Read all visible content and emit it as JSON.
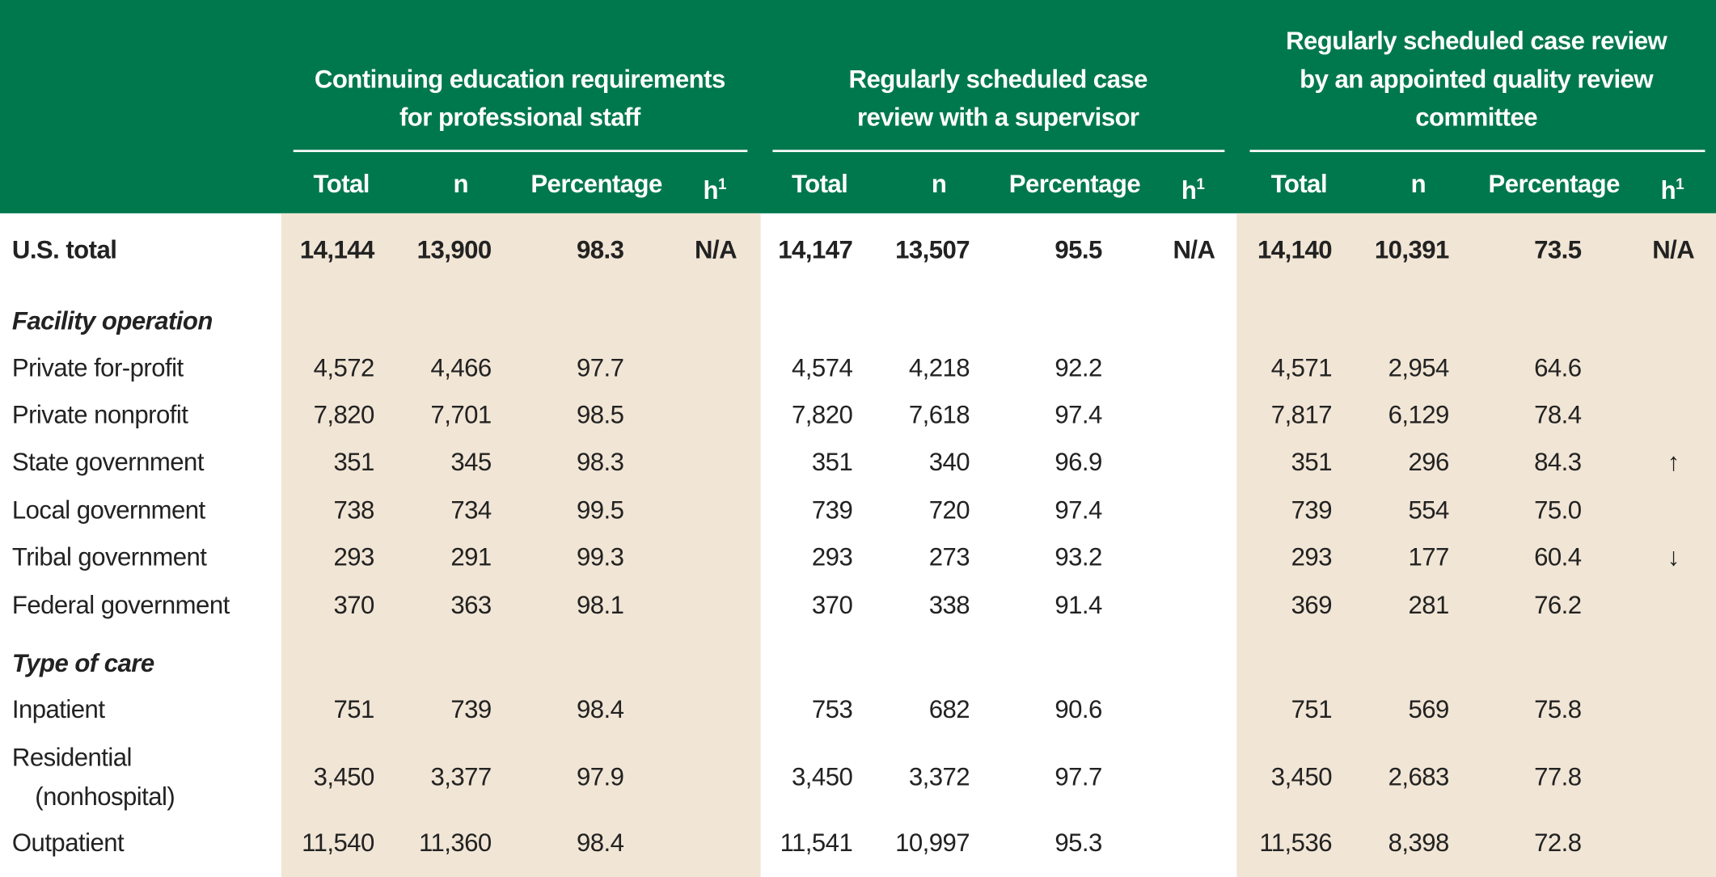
{
  "table": {
    "groups": [
      [
        "Continuing education requirements",
        "for professional staff"
      ],
      [
        "Regularly scheduled case",
        "review with a supervisor"
      ],
      [
        "Regularly scheduled case review",
        "by an appointed quality review",
        "committee"
      ]
    ],
    "columns": [
      "Total",
      "n",
      "Percentage",
      {
        "text": "h",
        "sup": "1"
      }
    ],
    "rows": [
      {
        "label": "U.S. total",
        "bold": true,
        "cells": [
          "14,144",
          "13,900",
          "98.3",
          "N/A",
          "14,147",
          "13,507",
          "95.5",
          "N/A",
          "14,140",
          "10,391",
          "73.5",
          "N/A"
        ]
      },
      {
        "section": "Facility operation"
      },
      {
        "label": "Private for-profit",
        "cells": [
          "4,572",
          "4,466",
          "97.7",
          null,
          "4,574",
          "4,218",
          "92.2",
          null,
          "4,571",
          "2,954",
          "64.6",
          null
        ]
      },
      {
        "label": "Private nonprofit",
        "cells": [
          "7,820",
          "7,701",
          "98.5",
          null,
          "7,820",
          "7,618",
          "97.4",
          null,
          "7,817",
          "6,129",
          "78.4",
          null
        ]
      },
      {
        "label": "State government",
        "cells": [
          "351",
          "345",
          "98.3",
          null,
          "351",
          "340",
          "96.9",
          null,
          "351",
          "296",
          "84.3",
          "↑"
        ]
      },
      {
        "label": "Local government",
        "cells": [
          "738",
          "734",
          "99.5",
          null,
          "739",
          "720",
          "97.4",
          null,
          "739",
          "554",
          "75.0",
          null
        ]
      },
      {
        "label": "Tribal government",
        "cells": [
          "293",
          "291",
          "99.3",
          null,
          "293",
          "273",
          "93.2",
          null,
          "293",
          "177",
          "60.4",
          "↓"
        ]
      },
      {
        "label": "Federal government",
        "cells": [
          "370",
          "363",
          "98.1",
          null,
          "370",
          "338",
          "91.4",
          null,
          "369",
          "281",
          "76.2",
          null
        ]
      },
      {
        "section": "Type of care"
      },
      {
        "label": "Inpatient",
        "cells": [
          "751",
          "739",
          "98.4",
          null,
          "753",
          "682",
          "90.6",
          null,
          "751",
          "569",
          "75.8",
          null
        ]
      },
      {
        "label": "Residential",
        "sublabel": "(nonhospital)",
        "cells": [
          "3,450",
          "3,377",
          "97.9",
          null,
          "3,450",
          "3,372",
          "97.7",
          null,
          "3,450",
          "2,683",
          "77.8",
          null
        ]
      },
      {
        "label": "Outpatient",
        "cells": [
          "11,540",
          "11,360",
          "98.4",
          null,
          "11,541",
          "10,997",
          "95.3",
          null,
          "11,536",
          "8,398",
          "72.8",
          null
        ]
      }
    ]
  }
}
